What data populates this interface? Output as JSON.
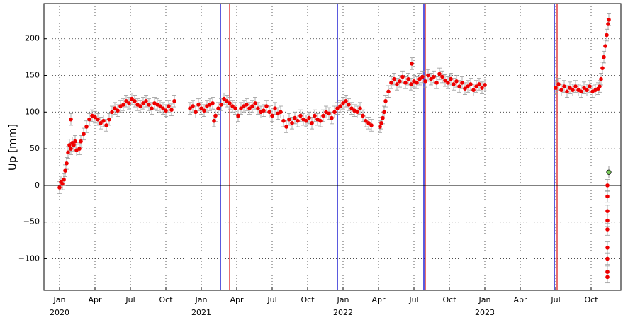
{
  "chart_data": {
    "type": "scatter",
    "y_label": "Up [mm]",
    "color": "#ee0000",
    "error_color": "#999999",
    "error": 8,
    "x": [
      2020.0,
      2020.01,
      2020.02,
      2020.03,
      2020.04,
      2020.05,
      2020.06,
      2020.07,
      2020.08,
      2020.09,
      2020.1,
      2020.11,
      2020.12,
      2020.14,
      2020.15,
      2020.17,
      2020.19,
      2020.21,
      2020.23,
      2020.25,
      2020.27,
      2020.29,
      2020.31,
      2020.33,
      2020.35,
      2020.37,
      2020.39,
      2020.41,
      2020.43,
      2020.45,
      2020.47,
      2020.49,
      2020.51,
      2020.53,
      2020.55,
      2020.57,
      2020.59,
      2020.61,
      2020.63,
      2020.65,
      2020.67,
      2020.69,
      2020.71,
      2020.73,
      2020.75,
      2020.77,
      2020.79,
      2020.81,
      2020.92,
      2020.94,
      2020.96,
      2020.98,
      2021.0,
      2021.02,
      2021.04,
      2021.06,
      2021.08,
      2021.09,
      2021.1,
      2021.12,
      2021.14,
      2021.16,
      2021.18,
      2021.2,
      2021.22,
      2021.24,
      2021.26,
      2021.28,
      2021.3,
      2021.32,
      2021.34,
      2021.36,
      2021.38,
      2021.4,
      2021.42,
      2021.44,
      2021.46,
      2021.48,
      2021.5,
      2021.52,
      2021.54,
      2021.56,
      2021.58,
      2021.6,
      2021.62,
      2021.64,
      2021.66,
      2021.68,
      2021.7,
      2021.72,
      2021.74,
      2021.76,
      2021.78,
      2021.8,
      2021.82,
      2021.84,
      2021.86,
      2021.88,
      2021.9,
      2021.92,
      2021.94,
      2021.96,
      2021.98,
      2022.0,
      2022.02,
      2022.04,
      2022.06,
      2022.08,
      2022.1,
      2022.12,
      2022.14,
      2022.16,
      2022.18,
      2022.2,
      2022.26,
      2022.27,
      2022.28,
      2022.29,
      2022.3,
      2022.32,
      2022.34,
      2022.36,
      2022.38,
      2022.4,
      2022.42,
      2022.44,
      2022.46,
      2022.48,
      2022.5,
      2022.52,
      2022.54,
      2022.56,
      2022.58,
      2022.6,
      2022.62,
      2022.64,
      2022.66,
      2022.68,
      2022.7,
      2022.72,
      2022.74,
      2022.76,
      2022.78,
      2022.8,
      2022.82,
      2022.84,
      2022.86,
      2022.88,
      2022.9,
      2022.92,
      2022.94,
      2022.96,
      2022.98,
      2023.0,
      2023.5,
      2023.52,
      2023.54,
      2023.56,
      2023.58,
      2023.6,
      2023.62,
      2023.64,
      2023.66,
      2023.68,
      2023.7,
      2023.72,
      2023.74,
      2023.76,
      2023.78,
      2023.8,
      2023.81,
      2023.82,
      2023.83,
      2023.84,
      2023.85,
      2023.86,
      2023.87,
      2023.875,
      2020.08,
      2022.485,
      2023.865,
      2023.865,
      2023.865,
      2023.865,
      2023.865,
      2023.865,
      2023.865,
      2023.865,
      2023.865
    ],
    "values": [
      -3,
      5,
      2,
      8,
      20,
      30,
      45,
      55,
      50,
      58,
      55,
      60,
      48,
      50,
      60,
      70,
      80,
      90,
      95,
      93,
      90,
      85,
      88,
      82,
      90,
      100,
      105,
      102,
      108,
      110,
      115,
      112,
      118,
      115,
      110,
      108,
      112,
      115,
      110,
      105,
      112,
      110,
      108,
      105,
      102,
      108,
      103,
      115,
      105,
      108,
      100,
      110,
      105,
      102,
      108,
      110,
      112,
      88,
      95,
      105,
      110,
      118,
      115,
      112,
      108,
      105,
      95,
      105,
      108,
      110,
      105,
      108,
      112,
      105,
      100,
      102,
      108,
      100,
      95,
      105,
      98,
      100,
      88,
      80,
      90,
      85,
      92,
      88,
      95,
      90,
      88,
      92,
      85,
      95,
      90,
      88,
      95,
      100,
      98,
      92,
      100,
      105,
      108,
      112,
      115,
      110,
      105,
      102,
      100,
      105,
      95,
      88,
      85,
      82,
      80,
      85,
      92,
      100,
      115,
      128,
      140,
      145,
      138,
      142,
      148,
      140,
      145,
      138,
      142,
      140,
      145,
      148,
      142,
      150,
      145,
      148,
      140,
      152,
      148,
      143,
      140,
      145,
      138,
      142,
      135,
      140,
      132,
      135,
      138,
      130,
      135,
      138,
      133,
      137,
      133,
      138,
      130,
      135,
      128,
      133,
      130,
      135,
      130,
      128,
      133,
      130,
      135,
      128,
      130,
      132,
      135,
      145,
      160,
      175,
      190,
      205,
      220,
      226,
      90,
      166,
      0,
      -15,
      -35,
      -48,
      -60,
      -85,
      -100,
      -118,
      -125
    ],
    "reference_point": {
      "x": 2023.875,
      "value": 18,
      "color": "#7ccc5c"
    },
    "vlines": [
      {
        "x": 2021.135,
        "color": "#0000cc"
      },
      {
        "x": 2021.2,
        "color": "#dd2222"
      },
      {
        "x": 2021.96,
        "color": "#0000cc"
      },
      {
        "x": 2022.57,
        "color": "#0000cc"
      },
      {
        "x": 2022.58,
        "color": "#dd2222"
      },
      {
        "x": 2023.49,
        "color": "#0000cc"
      },
      {
        "x": 2023.51,
        "color": "#dd2222"
      }
    ],
    "hline": 0,
    "xlim": [
      2019.89,
      2023.96
    ],
    "ylim": [
      -143,
      248
    ],
    "xticks": [
      {
        "value": 2020.0,
        "label": "Jan"
      },
      {
        "value": 2020.25,
        "label": "Apr"
      },
      {
        "value": 2020.5,
        "label": "Jul"
      },
      {
        "value": 2020.75,
        "label": "Oct"
      },
      {
        "value": 2021.0,
        "label": "Jan"
      },
      {
        "value": 2021.25,
        "label": "Apr"
      },
      {
        "value": 2021.5,
        "label": "Jul"
      },
      {
        "value": 2021.75,
        "label": "Oct"
      },
      {
        "value": 2022.0,
        "label": "Jan"
      },
      {
        "value": 2022.25,
        "label": "Apr"
      },
      {
        "value": 2022.5,
        "label": "Jul"
      },
      {
        "value": 2022.75,
        "label": "Oct"
      },
      {
        "value": 2023.0,
        "label": "Jan"
      },
      {
        "value": 2023.25,
        "label": "Apr"
      },
      {
        "value": 2023.5,
        "label": "Jul"
      },
      {
        "value": 2023.75,
        "label": "Oct"
      }
    ],
    "year_labels": [
      2020,
      2021,
      2022,
      2023
    ],
    "yticks": [
      {
        "value": -100,
        "label": "−100"
      },
      {
        "value": -50,
        "label": "−50"
      },
      0,
      50,
      100,
      150,
      200
    ],
    "grid": true
  }
}
